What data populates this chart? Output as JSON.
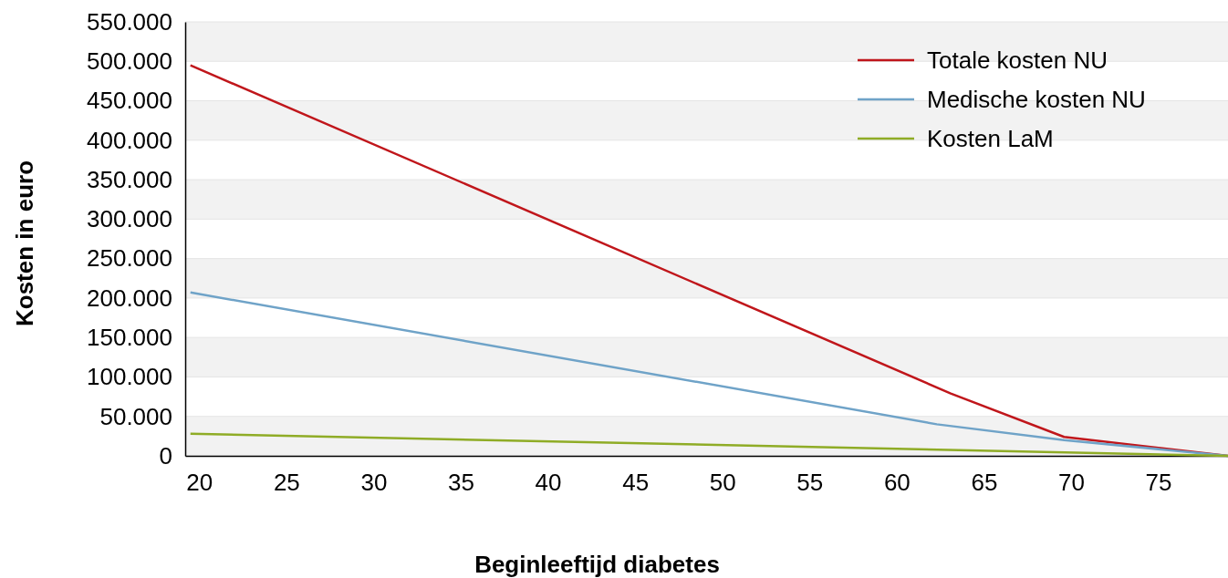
{
  "chart_data": {
    "type": "line",
    "xlabel": "Beginleeftijd diabetes",
    "ylabel": "Kosten in euro",
    "xlim": [
      19.2,
      79
    ],
    "xticks": [
      20,
      25,
      30,
      35,
      40,
      45,
      50,
      55,
      60,
      65,
      70,
      75
    ],
    "ylim": [
      0,
      550000
    ],
    "yticks": [
      {
        "value": 0,
        "label": "0"
      },
      {
        "value": 50000,
        "label": "50.000"
      },
      {
        "value": 100000,
        "label": "100.000"
      },
      {
        "value": 150000,
        "label": "150.000"
      },
      {
        "value": 200000,
        "label": "200.000"
      },
      {
        "value": 250000,
        "label": "250.000"
      },
      {
        "value": 300000,
        "label": "300.000"
      },
      {
        "value": 350000,
        "label": "350.000"
      },
      {
        "value": 400000,
        "label": "400.000"
      },
      {
        "value": 450000,
        "label": "450.000"
      },
      {
        "value": 500000,
        "label": "500.000"
      },
      {
        "value": 550000,
        "label": "550.000"
      }
    ],
    "grid": "y",
    "legend": "top right",
    "marker": "none",
    "line_style": "solid",
    "series": [
      {
        "name": "Totale kosten NU",
        "color": "#c0161b",
        "x": [
          19.5,
          63.1,
          69.6,
          79
        ],
        "values": [
          495000,
          79000,
          24000,
          0
        ]
      },
      {
        "name": "Medische kosten NU",
        "color": "#6fa3c8",
        "x": [
          19.5,
          62.3,
          69.6,
          79
        ],
        "values": [
          207000,
          40000,
          20000,
          0
        ]
      },
      {
        "name": "Kosten LaM",
        "color": "#8fac26",
        "x": [
          19.5,
          79
        ],
        "values": [
          28000,
          0
        ]
      }
    ]
  }
}
